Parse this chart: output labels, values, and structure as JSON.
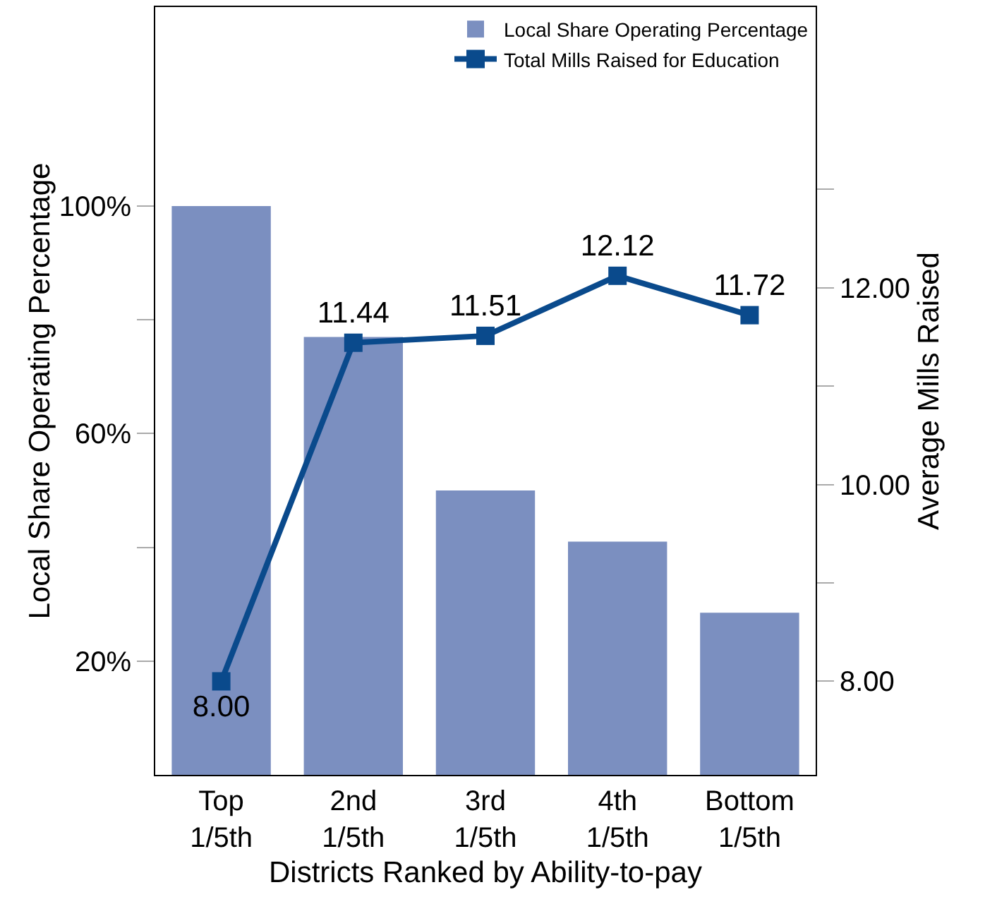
{
  "chart_data": {
    "type": "bar",
    "xlabel": "Districts Ranked by Ability-to-pay",
    "ylabel": "Local Share Operating Percentage",
    "y2label": "Average Mills Raised",
    "categories": [
      "Top\n1/5th",
      "2nd\n1/5th",
      "3rd\n1/5th",
      "4th\n1/5th",
      "Bottom\n1/5th"
    ],
    "series": [
      {
        "name": "Local Share Operating Percentage",
        "color": "#7b8fc0",
        "values": [
          100,
          77,
          50,
          41,
          28.5
        ]
      },
      {
        "name": "Total Mills Raised for Education",
        "type": "line",
        "axis": "y2",
        "color": "#0a4a8c",
        "marker": "square",
        "values": [
          8.0,
          11.44,
          11.51,
          12.12,
          11.72
        ],
        "value_labels": [
          "8.00",
          "11.44",
          "11.51",
          "12.12",
          "11.72"
        ]
      }
    ],
    "ylim": [
      0,
      135
    ],
    "yticks": [
      {
        "value": 20,
        "label": "20%"
      },
      {
        "value": 40,
        "label": null
      },
      {
        "value": 60,
        "label": "60%"
      },
      {
        "value": 80,
        "label": null
      },
      {
        "value": 100,
        "label": "100%"
      }
    ],
    "y2lim": [
      7.05,
      14.85
    ],
    "y2ticks": [
      {
        "value": 8,
        "label": "8.00"
      },
      {
        "value": 9,
        "label": null
      },
      {
        "value": 10,
        "label": "10.00"
      },
      {
        "value": 11,
        "label": null
      },
      {
        "value": 12,
        "label": "12.00"
      },
      {
        "value": 13,
        "label": null
      }
    ],
    "grid": false,
    "legend": "top right"
  }
}
